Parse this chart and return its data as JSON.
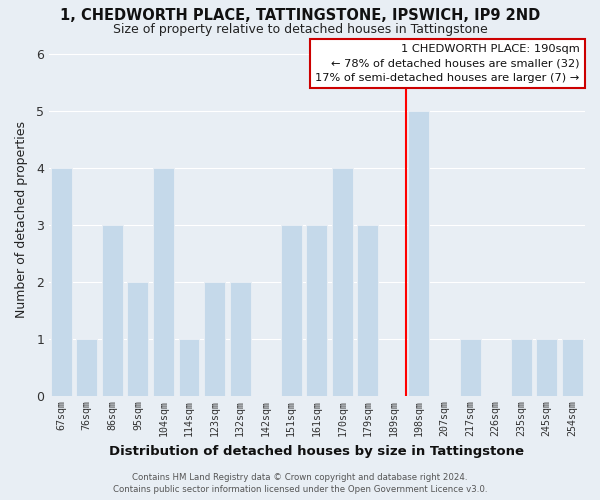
{
  "title": "1, CHEDWORTH PLACE, TATTINGSTONE, IPSWICH, IP9 2ND",
  "subtitle": "Size of property relative to detached houses in Tattingstone",
  "xlabel": "Distribution of detached houses by size in Tattingstone",
  "ylabel": "Number of detached properties",
  "footer_line1": "Contains HM Land Registry data © Crown copyright and database right 2024.",
  "footer_line2": "Contains public sector information licensed under the Open Government Licence v3.0.",
  "bin_labels": [
    "67sqm",
    "76sqm",
    "86sqm",
    "95sqm",
    "104sqm",
    "114sqm",
    "123sqm",
    "132sqm",
    "142sqm",
    "151sqm",
    "161sqm",
    "170sqm",
    "179sqm",
    "189sqm",
    "198sqm",
    "207sqm",
    "217sqm",
    "226sqm",
    "235sqm",
    "245sqm",
    "254sqm"
  ],
  "bar_heights": [
    4,
    1,
    3,
    2,
    4,
    1,
    2,
    2,
    0,
    3,
    3,
    4,
    3,
    0,
    5,
    0,
    1,
    0,
    1,
    1,
    1
  ],
  "bar_color": "#c5d9ea",
  "bg_color": "#e8eef4",
  "grid_color": "#ffffff",
  "ylim": [
    0,
    6.2
  ],
  "yticks": [
    0,
    1,
    2,
    3,
    4,
    5,
    6
  ],
  "annotation_title": "1 CHEDWORTH PLACE: 190sqm",
  "annotation_line1": "← 78% of detached houses are smaller (32)",
  "annotation_line2": "17% of semi-detached houses are larger (7) →",
  "red_line_x": 13.5
}
